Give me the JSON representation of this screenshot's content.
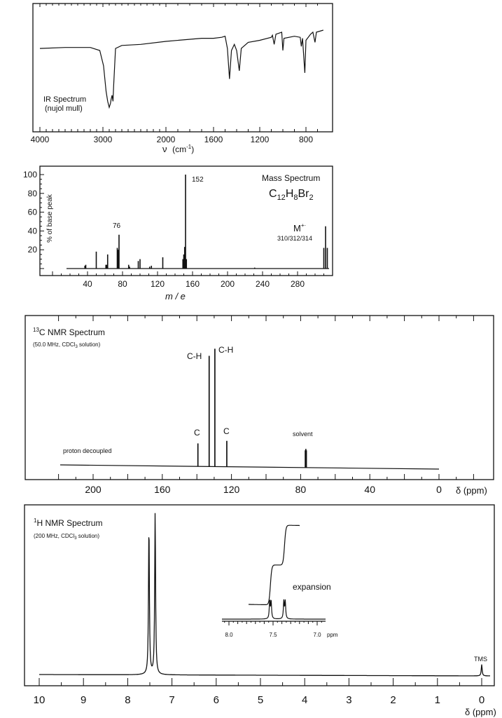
{
  "chart_data": [
    {
      "id": "ir",
      "type": "line",
      "title": "IR Spectrum",
      "subtitle": "(nujol mull)",
      "xlabel": "ν (cm⁻¹)",
      "ylabel": "",
      "xlim": [
        4000,
        600
      ],
      "x_ticks": [
        4000,
        3000,
        2000,
        1600,
        1200,
        800
      ],
      "y_units": "% transmittance (approx, 0 at bottom of frame, 100 at top)",
      "grid": false,
      "points": [
        [
          4000,
          82
        ],
        [
          3600,
          83
        ],
        [
          3200,
          83
        ],
        [
          3050,
          80
        ],
        [
          2990,
          65
        ],
        [
          2950,
          40
        ],
        [
          2924,
          30
        ],
        [
          2900,
          24
        ],
        [
          2880,
          28
        ],
        [
          2870,
          32
        ],
        [
          2855,
          36
        ],
        [
          2840,
          30
        ],
        [
          2830,
          45
        ],
        [
          2800,
          82
        ],
        [
          2700,
          85
        ],
        [
          2400,
          86
        ],
        [
          2000,
          89
        ],
        [
          1700,
          92
        ],
        [
          1600,
          92
        ],
        [
          1530,
          93
        ],
        [
          1500,
          94
        ],
        [
          1480,
          82
        ],
        [
          1462,
          52
        ],
        [
          1445,
          80
        ],
        [
          1420,
          86
        ],
        [
          1400,
          80
        ],
        [
          1377,
          60
        ],
        [
          1360,
          82
        ],
        [
          1300,
          88
        ],
        [
          1200,
          90
        ],
        [
          1100,
          93
        ],
        [
          1090,
          95
        ],
        [
          1075,
          86
        ],
        [
          1060,
          96
        ],
        [
          1010,
          98
        ],
        [
          1000,
          80
        ],
        [
          990,
          92
        ],
        [
          900,
          94
        ],
        [
          850,
          93
        ],
        [
          840,
          84
        ],
        [
          830,
          92
        ],
        [
          810,
          58
        ],
        [
          800,
          90
        ],
        [
          760,
          96
        ],
        [
          740,
          98
        ],
        [
          722,
          88
        ],
        [
          710,
          98
        ],
        [
          650,
          100
        ]
      ]
    },
    {
      "id": "ms",
      "type": "bar",
      "title": "Mass Spectrum",
      "formula": "C12H8Br2",
      "xlabel": "m / e",
      "ylabel": "% of base peak",
      "xlim": [
        0,
        320
      ],
      "ylim": [
        0,
        100
      ],
      "x_ticks": [
        40,
        80,
        120,
        160,
        200,
        240,
        280
      ],
      "y_ticks": [
        20,
        40,
        60,
        80,
        100
      ],
      "annotations": [
        {
          "text": "152",
          "x": 152,
          "y": 100
        },
        {
          "text": "76",
          "x": 76,
          "y": 36
        },
        {
          "text": "M+·",
          "x": 312,
          "y": 45
        },
        {
          "text": "310/312/314",
          "x": 312,
          "y": 40
        }
      ],
      "peaks": [
        [
          37,
          3
        ],
        [
          38,
          4
        ],
        [
          50,
          18
        ],
        [
          61,
          4
        ],
        [
          62,
          4
        ],
        [
          63,
          15
        ],
        [
          74,
          22
        ],
        [
          75,
          20
        ],
        [
          76,
          36
        ],
        [
          87,
          4
        ],
        [
          88,
          2
        ],
        [
          98,
          8
        ],
        [
          100,
          10
        ],
        [
          111,
          2
        ],
        [
          113,
          3
        ],
        [
          126,
          12
        ],
        [
          149,
          10
        ],
        [
          150,
          15
        ],
        [
          151,
          23
        ],
        [
          152,
          100
        ],
        [
          153,
          10
        ],
        [
          231,
          1
        ],
        [
          310,
          22
        ],
        [
          312,
          45
        ],
        [
          314,
          22
        ]
      ]
    },
    {
      "id": "c13",
      "type": "bar",
      "title": "¹³C NMR Spectrum",
      "subtitle": "(50.0 MHz, CDCl₃ solution)",
      "note": "proton decoupled",
      "xlabel": "δ (ppm)",
      "xlim": [
        220,
        0
      ],
      "x_ticks": [
        200,
        160,
        120,
        80,
        40,
        0
      ],
      "peaks": [
        {
          "ppm": 139.4,
          "height": 16,
          "label": "C"
        },
        {
          "ppm": 132.9,
          "height": 77,
          "label": "C-H"
        },
        {
          "ppm": 129.6,
          "height": 82,
          "label": "C-H"
        },
        {
          "ppm": 122.7,
          "height": 18,
          "label": "C"
        },
        {
          "ppm": 77.3,
          "height": 12,
          "label": "solvent"
        },
        {
          "ppm": 77.0,
          "height": 13,
          "label": ""
        },
        {
          "ppm": 76.7,
          "height": 12,
          "label": ""
        }
      ]
    },
    {
      "id": "h1",
      "type": "line",
      "title": "¹H NMR Spectrum",
      "subtitle": "(200 MHz, CDCl₃ solution)",
      "xlabel": "δ (ppm)",
      "xlim": [
        10,
        0
      ],
      "x_ticks": [
        10,
        9,
        8,
        7,
        6,
        5,
        4,
        3,
        2,
        1,
        0
      ],
      "peaks": [
        {
          "ppm": 7.52,
          "height": 92,
          "label": ""
        },
        {
          "ppm": 7.38,
          "height": 100,
          "label": ""
        },
        {
          "ppm": 0.0,
          "height": 7,
          "label": "TMS"
        }
      ],
      "inset": {
        "label": "expansion",
        "xlabel": "ppm",
        "xlim": [
          8.1,
          6.85
        ],
        "x_ticks": [
          8.0,
          7.5,
          7.0
        ],
        "peaks": [
          {
            "ppm": 7.53,
            "height": 100
          },
          {
            "ppm": 7.37,
            "height": 100
          }
        ],
        "integral_steps": [
          {
            "from": 7.65,
            "to": 7.45,
            "rise": 1
          },
          {
            "from": 7.45,
            "to": 7.3,
            "rise": 1
          }
        ]
      }
    }
  ],
  "labels": {
    "ir_title": "IR Spectrum",
    "ir_sub": "(nujol mull)",
    "ir_xlabel_nu": "ν",
    "ir_xlabel_unit": "(cm",
    "ir_xlabel_sup": "-1",
    "ir_xlabel_close": ")",
    "ms_title": "Mass Spectrum",
    "ms_formula_c": "C",
    "ms_formula_c_sub": "12",
    "ms_formula_h": "H",
    "ms_formula_h_sub": "8",
    "ms_formula_br": "Br",
    "ms_formula_br_sub": "2",
    "ms_ylabel": "% of base peak",
    "ms_xlabel": "m / e",
    "ms_base_peak": "152",
    "ms_76": "76",
    "ms_mplus": "M",
    "ms_mplus_sup": "+·",
    "ms_mplus_masses": "310/312/314",
    "c13_sup": "13",
    "c13_title": "C NMR Spectrum",
    "c13_sub_a": "(50.0 MHz, CDCl",
    "c13_sub_3": "3",
    "c13_sub_b": " solution)",
    "c13_note": "proton decoupled",
    "c13_ch": "C-H",
    "c13_c": "C",
    "c13_solvent": "solvent",
    "c13_xlabel": "δ (ppm)",
    "h1_sup": "1",
    "h1_title": "H NMR Spectrum",
    "h1_sub_a": "(200 MHz, CDCl",
    "h1_sub_3": "3",
    "h1_sub_b": " solution)",
    "h1_expansion": "expansion",
    "h1_inset_ppm": "ppm",
    "h1_tms": "TMS",
    "h1_xlabel": "δ (ppm)"
  }
}
